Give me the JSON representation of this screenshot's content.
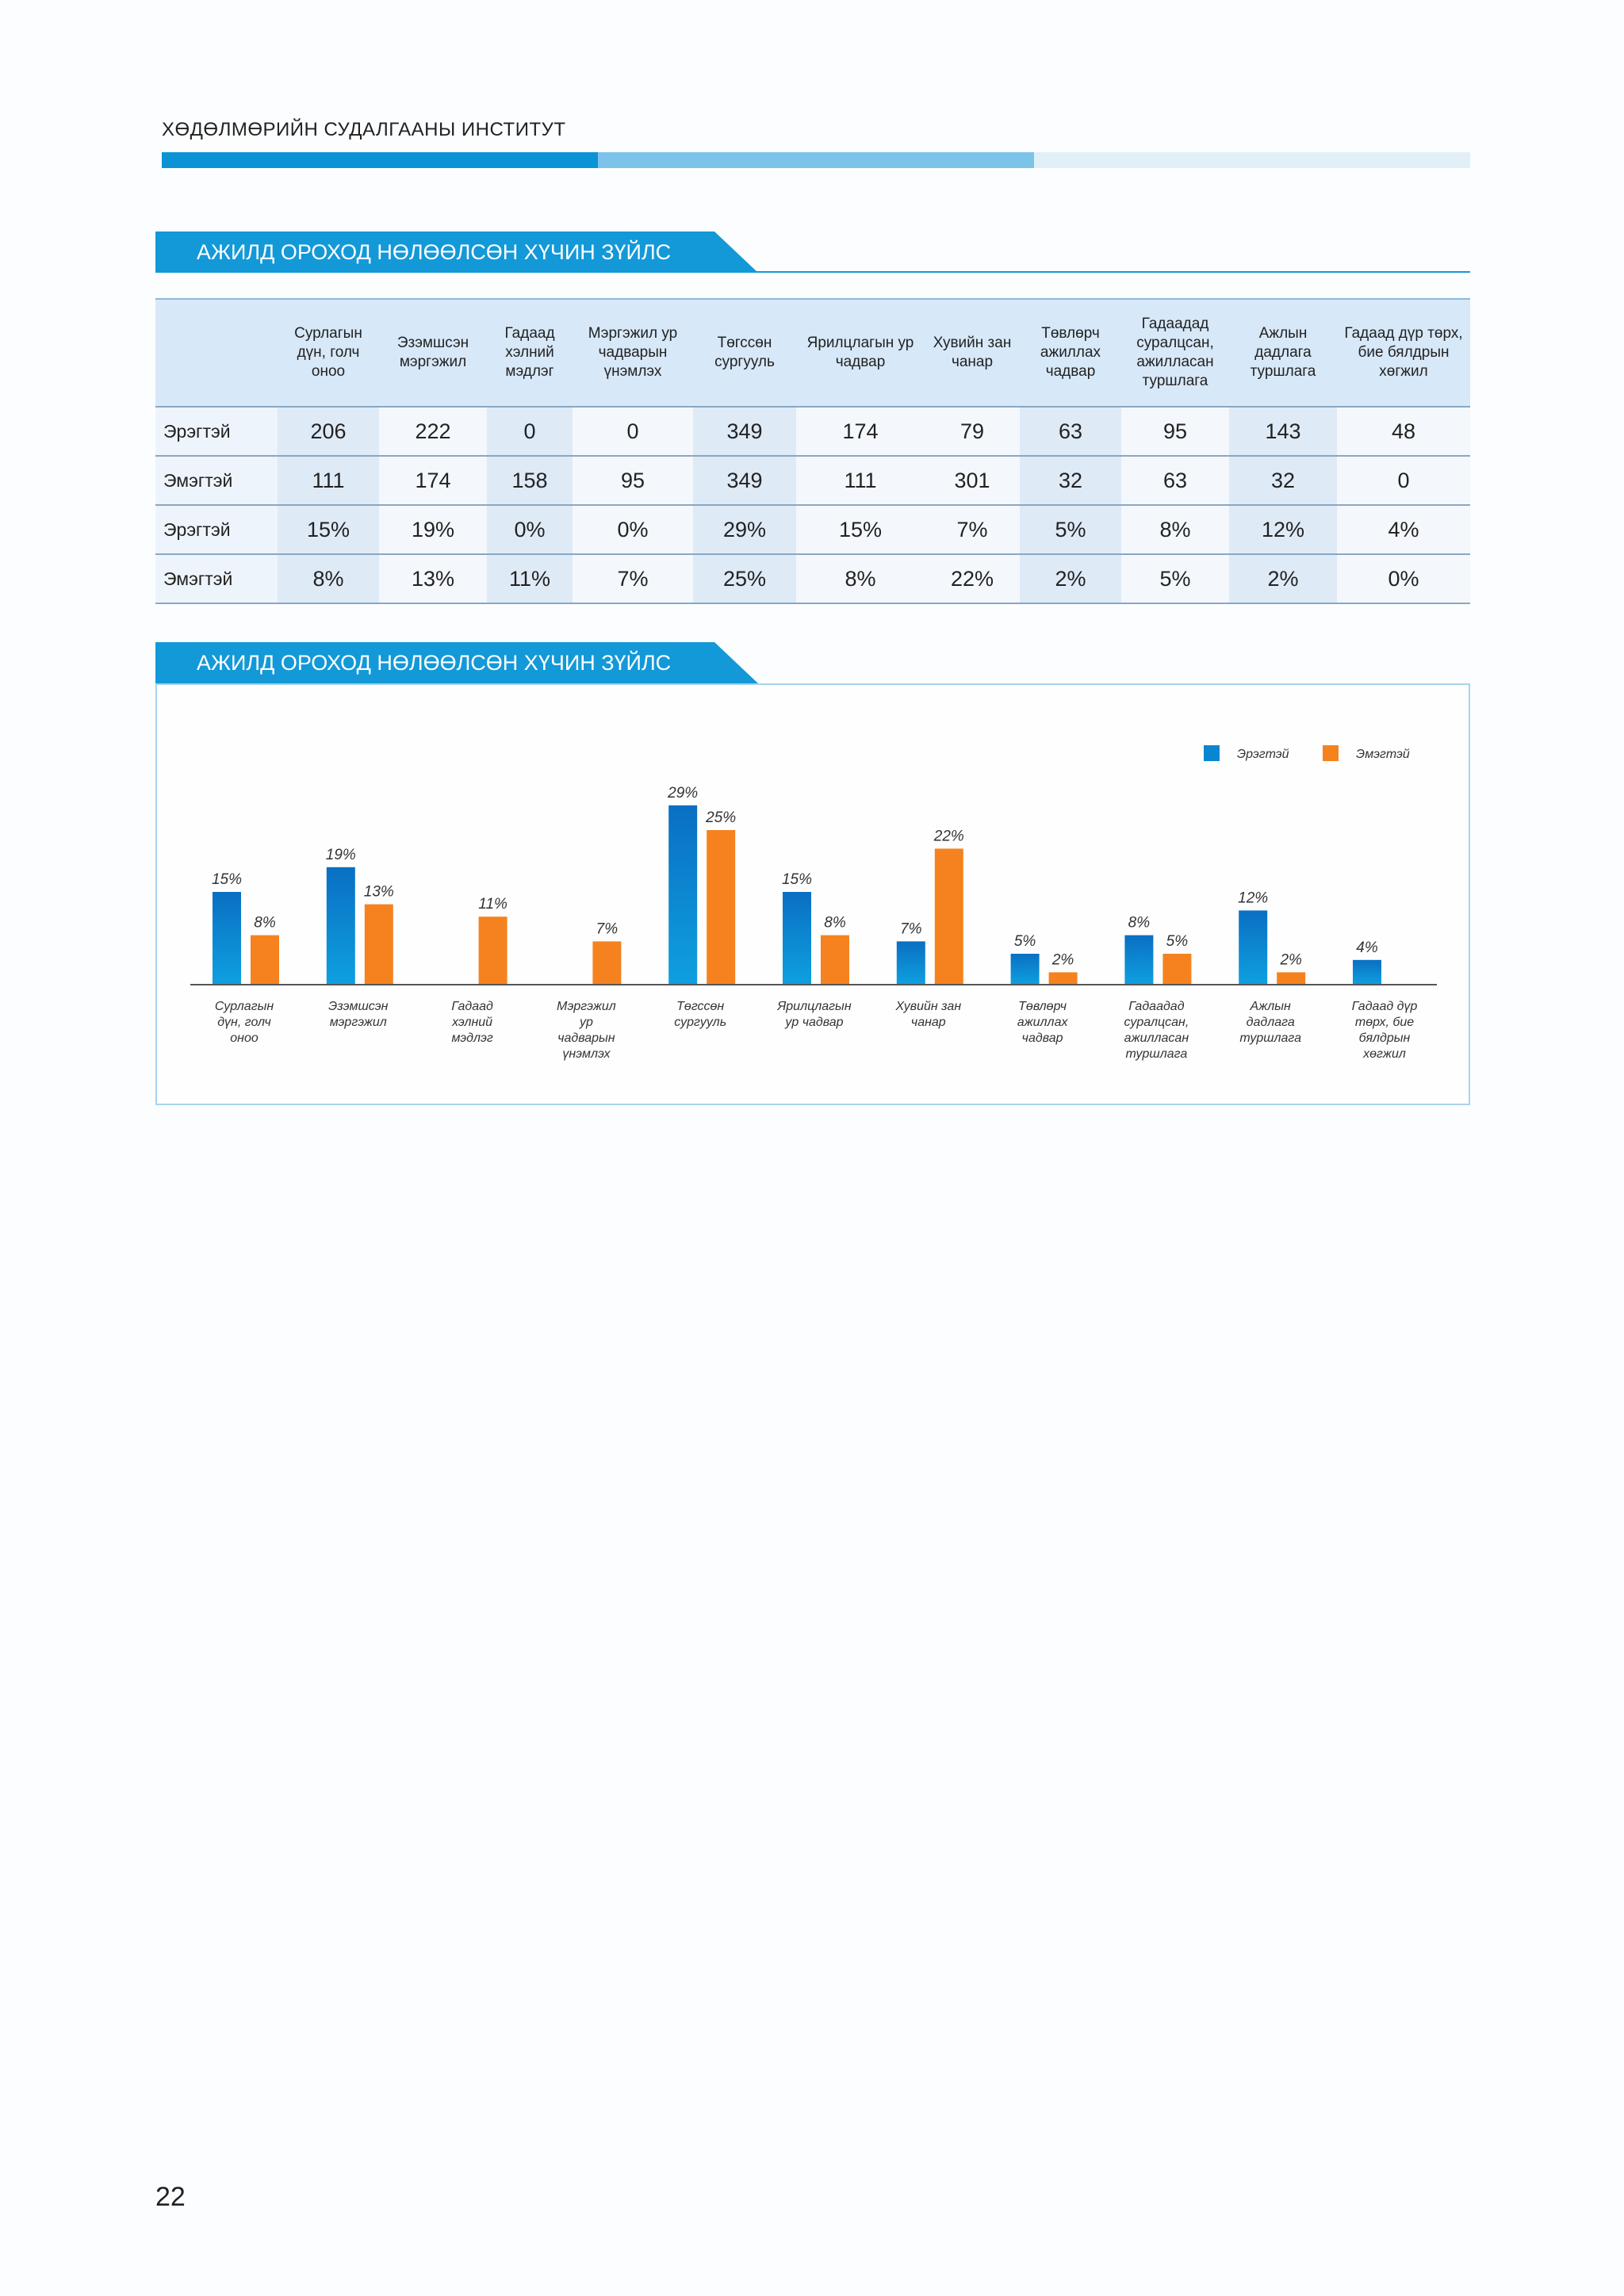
{
  "header": {
    "institute": "ХӨДӨЛМӨРИЙН СУДАЛГААНЫ ИНСТИТУТ"
  },
  "table_section": {
    "title": "АЖИЛД ОРОХОД НӨЛӨӨЛСӨН ХҮЧИН ЗҮЙЛС",
    "columns": [
      "Сурлагын дүн, голч оноо",
      "Эзэмшсэн мэргэжил",
      "Гадаад хэлний мэдлэг",
      "Мэргэжил ур чадварын үнэмлэх",
      "Төгссөн сургууль",
      "Ярилцлагын ур чадвар",
      "Хувийн зан чанар",
      "Төвлөрч ажиллах чадвар",
      "Гадаадад суралцсан, ажилласан туршлага",
      "Ажлын дадлага туршлага",
      "Гадаад дүр төрх, бие бялдрын хөгжил"
    ],
    "rows": [
      {
        "label": "Эрэгтэй",
        "values": [
          "206",
          "222",
          "0",
          "0",
          "349",
          "174",
          "79",
          "63",
          "95",
          "143",
          "48"
        ]
      },
      {
        "label": "Эмэгтэй",
        "values": [
          "111",
          "174",
          "158",
          "95",
          "349",
          "111",
          "301",
          "32",
          "63",
          "32",
          "0"
        ]
      },
      {
        "label": "Эрэгтэй",
        "values": [
          "15%",
          "19%",
          "0%",
          "0%",
          "29%",
          "15%",
          "7%",
          "5%",
          "8%",
          "12%",
          "4%"
        ]
      },
      {
        "label": "Эмэгтэй",
        "values": [
          "8%",
          "13%",
          "11%",
          "7%",
          "25%",
          "8%",
          "22%",
          "2%",
          "5%",
          "2%",
          "0%"
        ]
      }
    ]
  },
  "chart_section": {
    "title": "АЖИЛД ОРОХОД НӨЛӨӨЛСӨН ХҮЧИН ЗҮЙЛС"
  },
  "chart_data": {
    "type": "bar",
    "categories": [
      "Сурлагын дүн, голч оноо",
      "Эзэмшсэн мэргэжил",
      "Гадаад хэлний мэдлэг",
      "Мэргэжил ур чадварын үнэмлэх",
      "Төгссөн сургууль",
      "Ярилцлагын ур чадвар",
      "Хувийн зан чанар",
      "Төвлөрч ажиллах чадвар",
      "Гадаадад суралцсан, ажилласан туршлага",
      "Ажлын дадлага туршлага",
      "Гадаад дүр төрх, бие бялдрын хөгжил"
    ],
    "category_label_lines": [
      [
        "Сурлагын",
        "дүн, голч",
        "оноо"
      ],
      [
        "Эзэмшсэн",
        "мэргэжил"
      ],
      [
        "Гадаад",
        "хэлний",
        "мэдлэг"
      ],
      [
        "Мэргэжил",
        "ур",
        "чадварын",
        "үнэмлэх"
      ],
      [
        "Төгссөн",
        "сургууль"
      ],
      [
        "Ярилцлагын",
        "ур чадвар"
      ],
      [
        "Хувийн зан",
        "чанар"
      ],
      [
        "Төвлөрч",
        "ажиллах",
        "чадвар"
      ],
      [
        "Гадаадад",
        "суралцсан,",
        "ажилласан",
        "туршлага"
      ],
      [
        "Ажлын",
        "дадлага",
        "туршлага"
      ],
      [
        "Гадаад дүр",
        "төрх, бие",
        "бялдрын",
        "хөгжил"
      ]
    ],
    "series": [
      {
        "name": "Эрэгтэй",
        "color": "#0a86d0",
        "values": [
          15,
          19,
          0,
          0,
          29,
          15,
          7,
          5,
          8,
          12,
          4
        ],
        "labels": [
          "15%",
          "19%",
          "",
          "",
          "29%",
          "15%",
          "7%",
          "5%",
          "8%",
          "12%",
          "4%"
        ]
      },
      {
        "name": "Эмэгтэй",
        "color": "#f5821f",
        "values": [
          8,
          13,
          11,
          7,
          25,
          8,
          22,
          2,
          5,
          2,
          0
        ],
        "labels": [
          "8%",
          "13%",
          "11%",
          "7%",
          "25%",
          "8%",
          "22%",
          "2%",
          "5%",
          "2%",
          ""
        ]
      }
    ],
    "legend_position": "top-right",
    "ylim": [
      0,
      30
    ]
  },
  "page": {
    "number": "22"
  }
}
